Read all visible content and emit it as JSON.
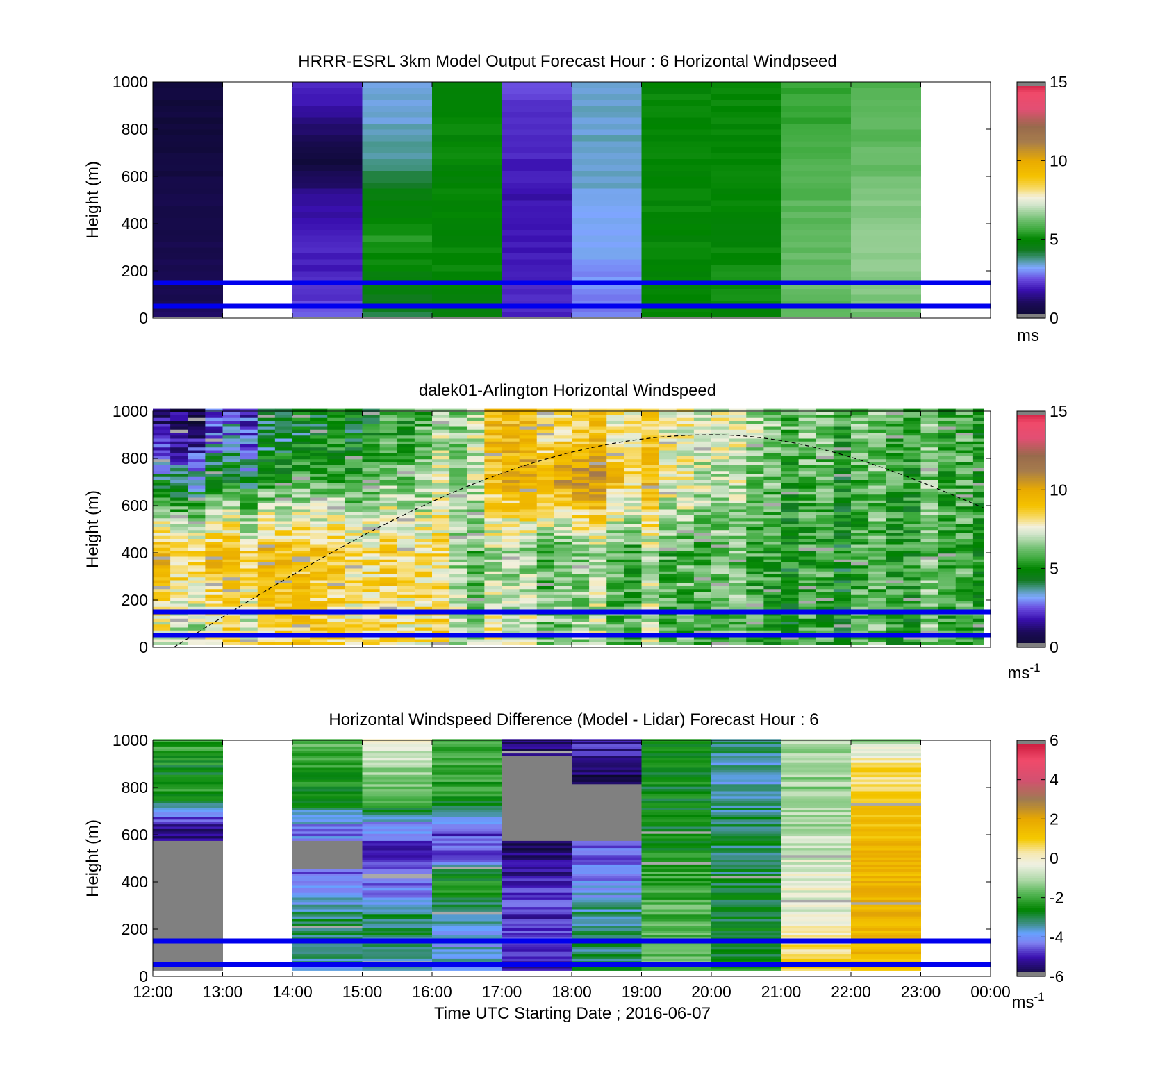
{
  "figure": {
    "x_tick_labels": [
      "12:00",
      "13:00",
      "14:00",
      "15:00",
      "16:00",
      "17:00",
      "18:00",
      "19:00",
      "20:00",
      "21:00",
      "22:00",
      "23:00",
      "00:00"
    ],
    "x_axis_label": "Time UTC  Starting Date ; 2016-06-07",
    "y_axis_label": "Height (m)",
    "y_tick_labels": [
      "0",
      "200",
      "400",
      "600",
      "800",
      "1000"
    ],
    "reference_line_color": "#0000ee",
    "missing_color": "#ffffff",
    "out_of_range_color": "#808080"
  },
  "chart_data": [
    {
      "type": "heatmap",
      "title": "HRRR-ESRL 3km Model Output   Forecast Hour : 6 Horizontal Windpseed",
      "xlabel": "",
      "ylabel": "Height (m)",
      "x_range_hours_utc": [
        12,
        24
      ],
      "ylim": [
        0,
        1000
      ],
      "colorbar": {
        "range": [
          0,
          15
        ],
        "ticks": [
          "0",
          "5",
          "10",
          "15"
        ],
        "unit": "ms",
        "unit_superscript": ""
      },
      "reference_lines_height_m": [
        150,
        50
      ],
      "heights_m": [
        25,
        50,
        75,
        100,
        125,
        150,
        175,
        200,
        225,
        250,
        275,
        300,
        325,
        350,
        375,
        400,
        425,
        450,
        475,
        500,
        525,
        550,
        575,
        600,
        625,
        650,
        675,
        700,
        725,
        750,
        775,
        800,
        825,
        850,
        875,
        900,
        925,
        950,
        975,
        1000
      ],
      "columns_hour_start": [
        12,
        13,
        14,
        15,
        16,
        17,
        18,
        19,
        20,
        21,
        22,
        23
      ],
      "profiles_typical_ms": [
        [
          1.0,
          0.8,
          0.8,
          0.6,
          0.6,
          0.5,
          0.4,
          0.4,
          0.3
        ],
        null,
        [
          2.5,
          2.0,
          2.0,
          1.6,
          0.4,
          1.2,
          2.2
        ],
        [
          4.2,
          4.8,
          5.3,
          4.8,
          3.8,
          3.5,
          3.2
        ],
        [
          4.8,
          5.0,
          5.0,
          5.0,
          5.0,
          5.0,
          5.0
        ],
        [
          2.0,
          2.0,
          1.8,
          1.8,
          2.0,
          2.2,
          2.4
        ],
        [
          2.8,
          3.0,
          3.2,
          3.4,
          3.5,
          3.5,
          3.5
        ],
        [
          5.0,
          5.0,
          5.0,
          5.0,
          5.0,
          5.0,
          5.0
        ],
        [
          5.0,
          5.2,
          5.0,
          5.0,
          5.0,
          5.0,
          5.0
        ],
        [
          6.0,
          6.2,
          6.0,
          6.0,
          5.8,
          5.6,
          5.5
        ],
        [
          6.3,
          6.5,
          6.5,
          6.4,
          6.1,
          6.0,
          5.8
        ],
        null
      ]
    },
    {
      "type": "heatmap",
      "title": "dalek01-Arlington  Horizontal Windspeed",
      "xlabel": "",
      "ylabel": "Height (m)",
      "x_range_hours_utc": [
        12,
        24
      ],
      "ylim": [
        0,
        1000
      ],
      "colorbar": {
        "range": [
          0,
          15
        ],
        "ticks": [
          "0",
          "5",
          "10",
          "15"
        ],
        "unit": "ms",
        "unit_superscript": "-1"
      },
      "reference_lines_height_m": [
        150,
        50
      ],
      "boundary_layer_curve": {
        "style": "dashed",
        "start": [
          12.3,
          0
        ],
        "peak": [
          20.0,
          900
        ],
        "end": [
          23.9,
          590
        ]
      },
      "time_step_minutes": 15,
      "typical_ms_by_hour_and_height": {
        "12:00": {
          "0-200": 7.5,
          "200-600": 9.5,
          "600-800": 4.0,
          "800-1000": 1.0
        },
        "14:00": {
          "0-200": 8.0,
          "200-600": 8.5,
          "600-800": 5.0,
          "800-1000": 3.5
        },
        "16:00": {
          "0-200": 8.0,
          "200-600": 8.0,
          "600-800": 6.5,
          "800-1000": 6.0
        },
        "17:00": {
          "0-200": 7.0,
          "200-600": 6.0,
          "600-800": 9.0,
          "800-1000": 9.0
        },
        "18:00": {
          "0-200": 6.5,
          "200-600": 6.0,
          "600-800": 10.5,
          "800-1000": 8.5
        },
        "20:00": {
          "0-200": 6.5,
          "200-600": 6.5,
          "600-800": 7.5,
          "800-1000": 8.0
        },
        "22:00": {
          "0-200": 5.0,
          "200-600": 5.0,
          "600-800": 5.0,
          "800-1000": 5.5
        },
        "23:00": {
          "0-200": 6.0,
          "200-600": 6.0,
          "600-800": 6.0,
          "800-1000": 6.0
        }
      }
    },
    {
      "type": "heatmap",
      "title": "Horizontal Windspeed Difference (Model - Lidar) Forecast Hour : 6",
      "xlabel": "Time UTC  Starting Date ; 2016-06-07",
      "ylabel": "Height (m)",
      "x_range_hours_utc": [
        12,
        24
      ],
      "ylim": [
        0,
        1000
      ],
      "colorbar": {
        "range": [
          -6,
          6
        ],
        "ticks": [
          "-6",
          "-4",
          "-2",
          "0",
          "2",
          "4",
          "6"
        ],
        "unit": "ms",
        "unit_superscript": "-1"
      },
      "reference_lines_height_m": [
        150,
        50
      ],
      "columns_hour_start": [
        12,
        13,
        14,
        15,
        16,
        17,
        18,
        19,
        20,
        21,
        22,
        23
      ],
      "profiles_typical_ms": [
        [
          null,
          null,
          null,
          null,
          null,
          -5.3,
          -2.3,
          -2.6,
          -2.0
        ],
        null,
        [
          -3.6,
          -3.0,
          -3.1,
          -4.3,
          null,
          -4.2,
          -2.4,
          -2.4,
          -1.6
        ],
        [
          -3.2,
          -3.0,
          -3.1,
          -4.6,
          -4.9,
          -4.2,
          -1.8,
          -1.2,
          -0.2
        ],
        [
          -3.5,
          -3.8,
          -3.5,
          -2.0,
          -4.8,
          -4.6,
          -2.3,
          -2.0,
          -2.0
        ],
        [
          -5.0,
          -4.8,
          -4.8,
          -5.0,
          -5.4,
          null,
          null,
          null,
          -5.6
        ],
        [
          -3.2,
          -3.0,
          -3.3,
          -4.0,
          -4.5,
          null,
          null,
          -5.5,
          -4.9
        ],
        [
          -1.6,
          -1.6,
          -1.8,
          -2.0,
          -2.4,
          -2.7,
          -2.7,
          -2.6,
          -2.8
        ],
        [
          -2.6,
          -2.8,
          -3.0,
          -3.0,
          -3.0,
          -3.0,
          -3.4,
          -3.6,
          -3.0
        ],
        [
          1.0,
          0.4,
          -0.6,
          -0.3,
          -0.6,
          -1.0,
          -1.2,
          -1.2,
          -1.0
        ],
        [
          1.4,
          1.6,
          1.6,
          1.6,
          1.6,
          1.4,
          1.0,
          0.6,
          -1.0
        ],
        null
      ]
    }
  ]
}
